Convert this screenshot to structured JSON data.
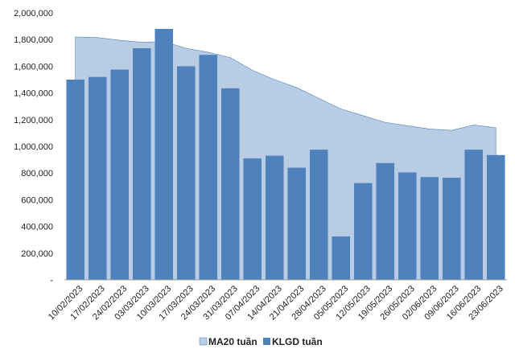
{
  "chart_data": {
    "type": "bar",
    "categories": [
      "10/02/2023",
      "17/02/2023",
      "24/02/2023",
      "03/03/2023",
      "10/03/2023",
      "17/03/2023",
      "24/03/2023",
      "31/03/2023",
      "07/04/2023",
      "14/04/2023",
      "21/04/2023",
      "28/04/2023",
      "05/05/2023",
      "12/05/2023",
      "19/05/2023",
      "26/05/2023",
      "02/06/2023",
      "09/06/2023",
      "16/06/2023",
      "23/06/2023"
    ],
    "series": [
      {
        "name": "MA20 tuần",
        "type": "area",
        "color": "#b8cce4",
        "values": [
          1820000,
          1815000,
          1795000,
          1780000,
          1785000,
          1735000,
          1705000,
          1665000,
          1570000,
          1500000,
          1440000,
          1360000,
          1280000,
          1230000,
          1180000,
          1155000,
          1130000,
          1120000,
          1160000,
          1140000
        ]
      },
      {
        "name": "KLGD tuần",
        "type": "bar",
        "color": "#4f81bd",
        "values": [
          1500000,
          1520000,
          1575000,
          1735000,
          1880000,
          1600000,
          1685000,
          1435000,
          910000,
          930000,
          840000,
          975000,
          325000,
          725000,
          875000,
          805000,
          770000,
          765000,
          975000,
          935000
        ]
      }
    ],
    "yticks": [
      "2,000,000",
      "1,800,000",
      "1,600,000",
      "1,400,000",
      "1,200,000",
      "1,000,000",
      "800,000",
      "600,000",
      "400,000",
      "200,000",
      "-"
    ],
    "ylim": [
      0,
      2000000
    ],
    "grid": false,
    "legend": "bottom"
  }
}
